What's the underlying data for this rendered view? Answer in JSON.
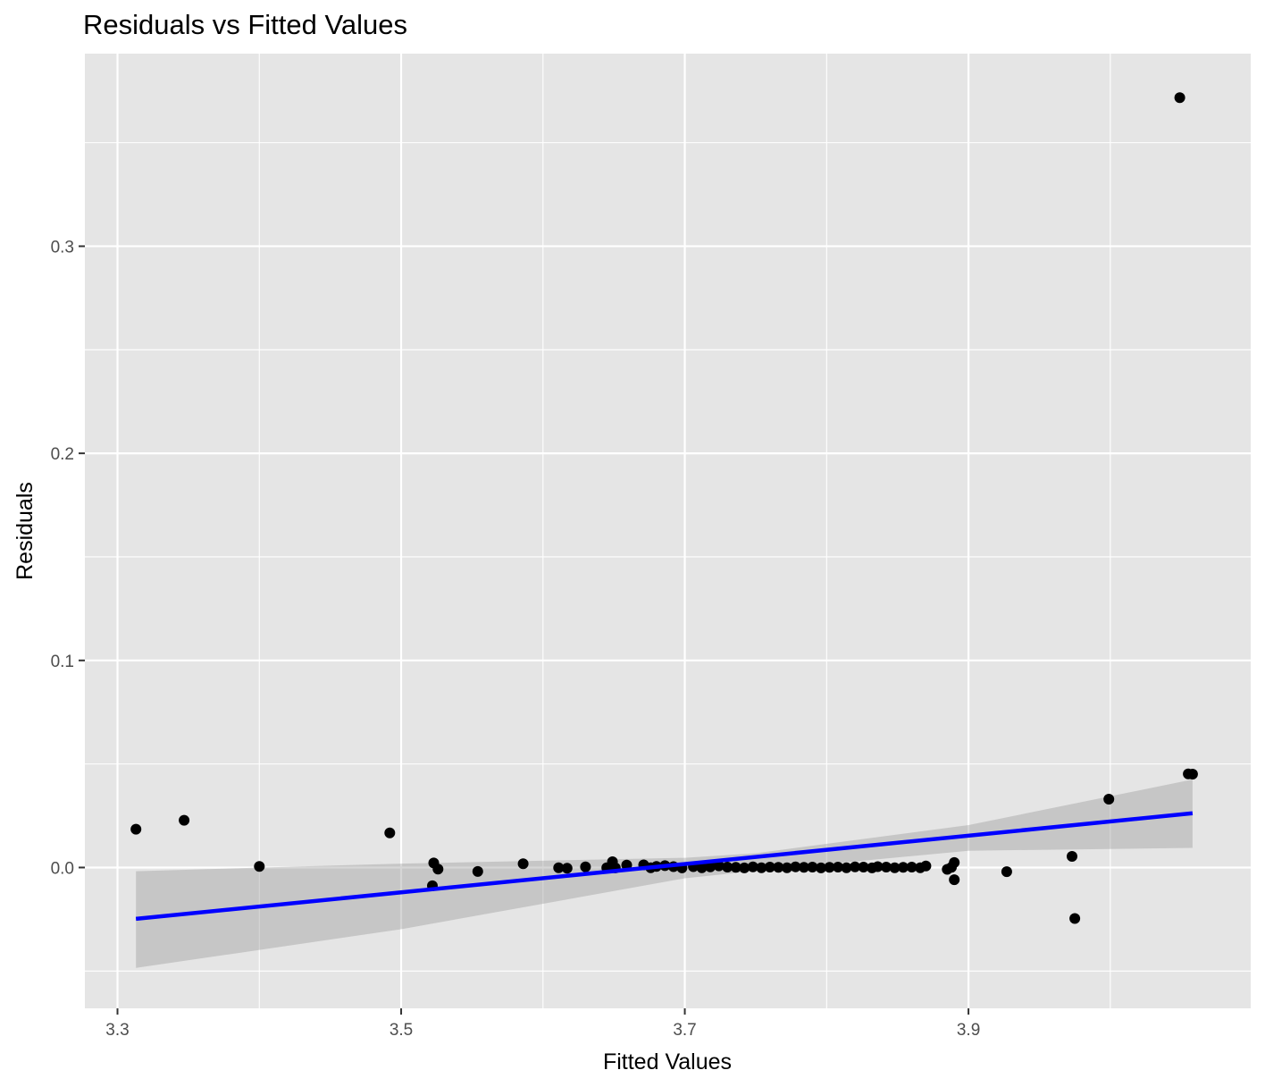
{
  "chart_data": {
    "type": "scatter",
    "title": "Residuals vs Fitted Values",
    "xlabel": "Fitted Values",
    "ylabel": "Residuals",
    "xlim": [
      3.277,
      4.099
    ],
    "ylim": [
      -0.068,
      0.393
    ],
    "x_ticks": [
      3.3,
      3.5,
      3.7,
      3.9
    ],
    "x_tick_labels": [
      "3.3",
      "3.5",
      "3.7",
      "3.9"
    ],
    "y_ticks": [
      0.0,
      0.1,
      0.2,
      0.3
    ],
    "y_tick_labels": [
      "0.0",
      "0.1",
      "0.2",
      "0.3"
    ],
    "grid": true,
    "panel_color": "#e5e5e5",
    "grid_color": "#ffffff",
    "point_color": "#000000",
    "fit_line_color": "#0000ff",
    "ribbon_color": "#999999",
    "points": [
      [
        3.313,
        0.0185
      ],
      [
        3.347,
        0.0228
      ],
      [
        3.4,
        0.0005
      ],
      [
        3.492,
        0.0167
      ],
      [
        3.523,
        0.0022
      ],
      [
        3.522,
        -0.0088
      ],
      [
        3.526,
        -0.0008
      ],
      [
        3.554,
        -0.0019
      ],
      [
        3.586,
        0.0018
      ],
      [
        3.611,
        -0.0001
      ],
      [
        3.617,
        -0.0003
      ],
      [
        3.63,
        0.0003
      ],
      [
        3.645,
        -0.0001
      ],
      [
        3.649,
        0.0028
      ],
      [
        3.651,
        -0.0002
      ],
      [
        3.659,
        0.0012
      ],
      [
        3.671,
        0.0013
      ],
      [
        3.676,
        -0.0001
      ],
      [
        3.68,
        0.0005
      ],
      [
        3.686,
        0.0009
      ],
      [
        3.692,
        0.0004
      ],
      [
        3.698,
        -0.0002
      ],
      [
        3.706,
        0.0004
      ],
      [
        3.712,
        -0.0001
      ],
      [
        3.718,
        0.0003
      ],
      [
        3.724,
        0.0008
      ],
      [
        3.73,
        0.0002
      ],
      [
        3.736,
        0.0001
      ],
      [
        3.742,
        -0.0002
      ],
      [
        3.748,
        0.0003
      ],
      [
        3.754,
        -0.0001
      ],
      [
        3.76,
        0.0002
      ],
      [
        3.766,
        0.0001
      ],
      [
        3.772,
        -0.0001
      ],
      [
        3.778,
        0.0003
      ],
      [
        3.784,
        0.0001
      ],
      [
        3.79,
        0.0002
      ],
      [
        3.796,
        -0.0002
      ],
      [
        3.802,
        0.0001
      ],
      [
        3.808,
        0.0002
      ],
      [
        3.814,
        -0.0001
      ],
      [
        3.82,
        0.0003
      ],
      [
        3.826,
        0.0002
      ],
      [
        3.832,
        -0.0002
      ],
      [
        3.836,
        0.0004
      ],
      [
        3.842,
        0.0002
      ],
      [
        3.848,
        -0.0001
      ],
      [
        3.854,
        0.0001
      ],
      [
        3.86,
        0.0002
      ],
      [
        3.866,
        -0.0001
      ],
      [
        3.87,
        0.0007
      ],
      [
        3.885,
        -0.0009
      ],
      [
        3.888,
        0.0001
      ],
      [
        3.89,
        0.0024
      ],
      [
        3.89,
        -0.0059
      ],
      [
        3.927,
        -0.002
      ],
      [
        3.973,
        0.0054
      ],
      [
        3.975,
        -0.0246
      ],
      [
        3.999,
        0.033
      ],
      [
        4.049,
        0.3717
      ],
      [
        4.055,
        0.0452
      ],
      [
        4.058,
        0.0451
      ]
    ],
    "fit_line": [
      [
        3.313,
        -0.0248
      ],
      [
        4.058,
        0.0262
      ]
    ],
    "ribbon": {
      "x": [
        3.313,
        3.5,
        3.7,
        3.75,
        3.9,
        4.058
      ],
      "upper": [
        -0.0018,
        0.0019,
        0.0047,
        0.0069,
        0.0205,
        0.0425
      ],
      "lower": [
        -0.0485,
        -0.0298,
        -0.0052,
        -0.0016,
        0.0081,
        0.0095
      ]
    }
  }
}
